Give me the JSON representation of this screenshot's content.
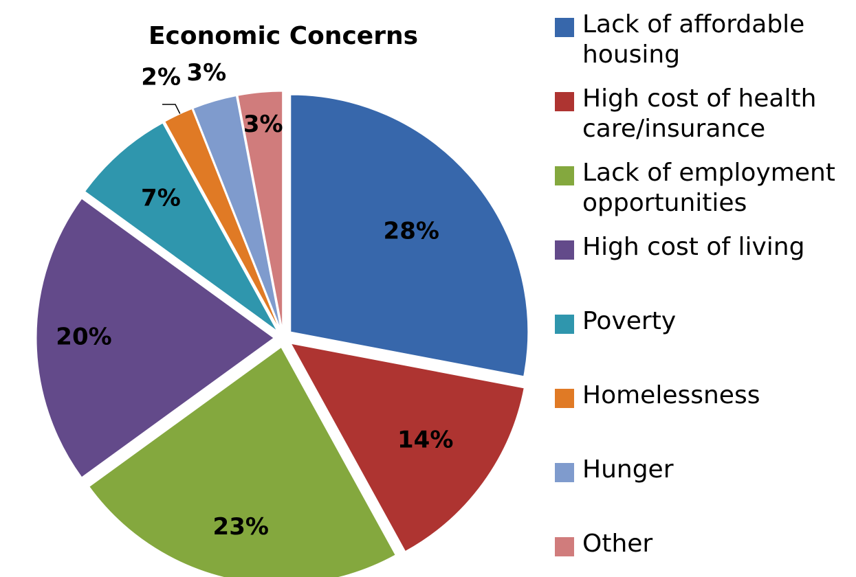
{
  "chart_data": {
    "type": "pie",
    "title": "Economic Concerns",
    "categories": [
      "Lack of affordable housing",
      "High cost of health care/insurance",
      "Lack of employment opportunities",
      "High cost of living",
      "Poverty",
      "Homelessness",
      "Hunger",
      "Other"
    ],
    "values": [
      28,
      14,
      23,
      20,
      7,
      2,
      3,
      3
    ],
    "value_labels": [
      "28%",
      "14%",
      "23%",
      "20%",
      "7%",
      "2%",
      "3%",
      "3%"
    ],
    "colors": [
      "#3767ab",
      "#ae3431",
      "#84a83e",
      "#634a8a",
      "#2f96ad",
      "#e07a25",
      "#7f9bcd",
      "#d07c7c"
    ],
    "legend": "right"
  }
}
